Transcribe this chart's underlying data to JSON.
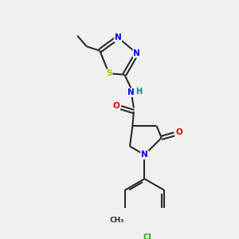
{
  "background_color": "#f0f0f0",
  "bond_color": "#2a2a2a",
  "atom_colors": {
    "N": "#0000ee",
    "O": "#ee0000",
    "S": "#bbbb00",
    "Cl": "#00bb00",
    "C": "#2a2a2a",
    "H": "#008888"
  },
  "figsize": [
    3.0,
    3.0
  ],
  "dpi": 100
}
